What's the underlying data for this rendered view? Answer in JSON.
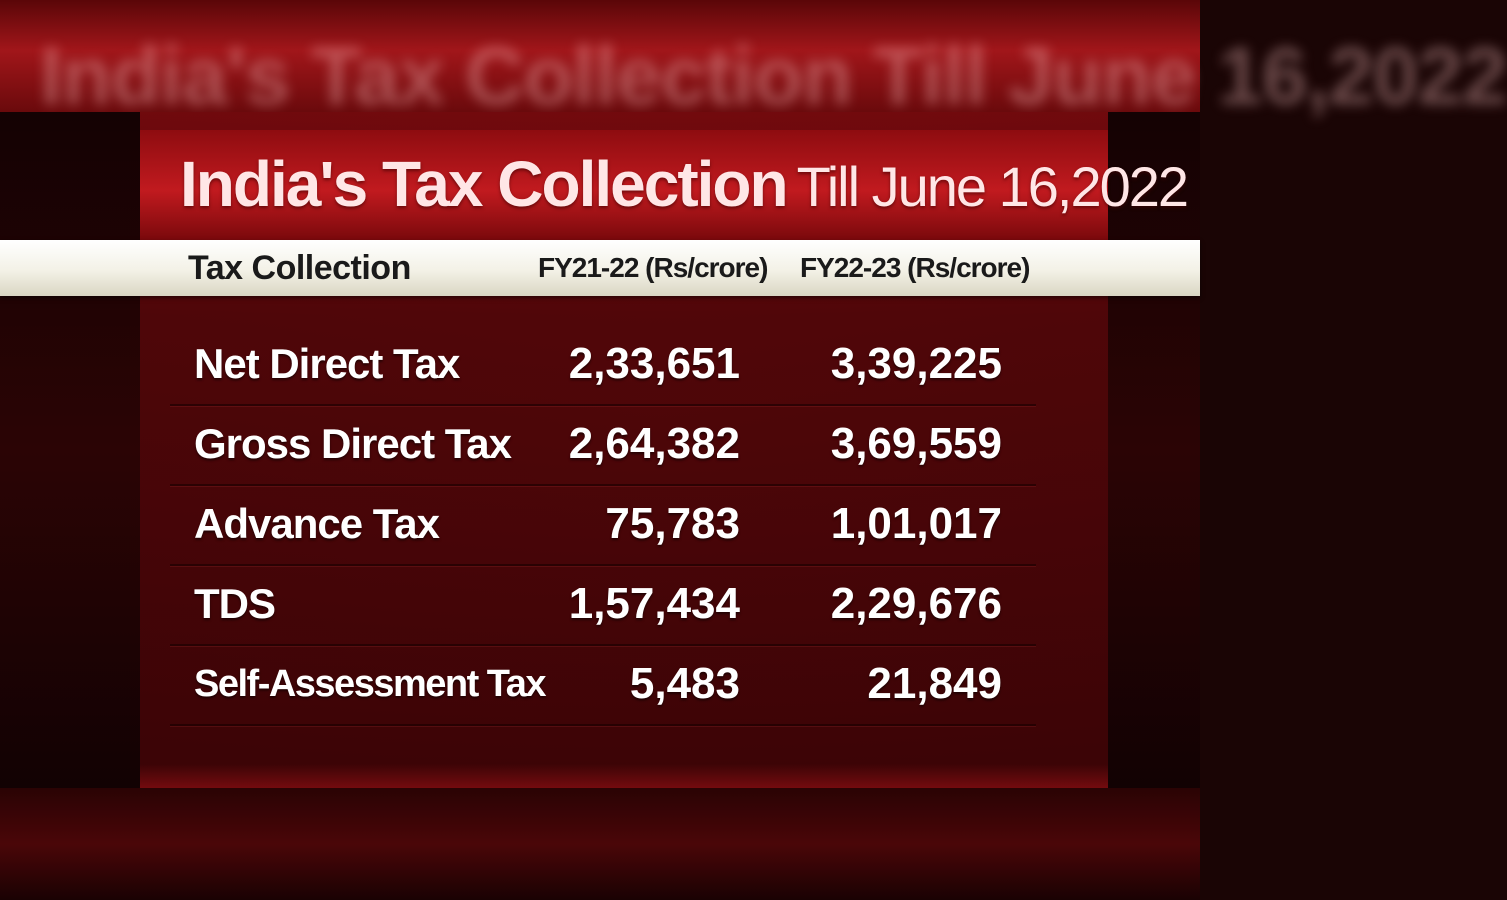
{
  "title": {
    "main": "India's Tax Collection",
    "sub": "Till June 16,2022"
  },
  "header": {
    "col1": "Tax Collection",
    "col2": "FY21-22 (Rs/crore)",
    "col3": "FY22-23 (Rs/crore)"
  },
  "rows": [
    {
      "name": "Net Direct Tax",
      "fy21_22": "2,33,651",
      "fy22_23": "3,39,225"
    },
    {
      "name": "Gross Direct Tax",
      "fy21_22": "2,64,382",
      "fy22_23": "3,69,559"
    },
    {
      "name": "Advance Tax",
      "fy21_22": "75,783",
      "fy22_23": "1,01,017"
    },
    {
      "name": "TDS",
      "fy21_22": "1,57,434",
      "fy22_23": "2,29,676"
    },
    {
      "name": "Self-Assessment Tax",
      "fy21_22": "5,483",
      "fy22_23": "21,849"
    }
  ],
  "colors": {
    "accent_red": "#c11a1f",
    "header_strip": "#f3f1e6",
    "text_light": "#ffffff"
  }
}
